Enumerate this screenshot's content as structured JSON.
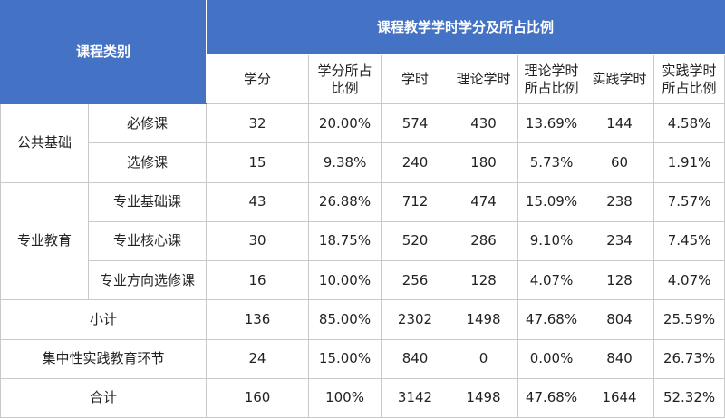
{
  "header": {
    "category": "课程类别",
    "group": "课程教学学时学分及所占比例",
    "columns": [
      [
        "学分"
      ],
      [
        "学分所占",
        "比例"
      ],
      [
        "学时"
      ],
      [
        "理论学时"
      ],
      [
        "理论学时",
        "所占比例"
      ],
      [
        "实践学时"
      ],
      [
        "实践学时",
        "所占比例"
      ]
    ]
  },
  "groups": [
    {
      "name": "公共基础",
      "rows": [
        {
          "name": "必修课",
          "cells": [
            "32",
            "20.00%",
            "574",
            "430",
            "13.69%",
            "144",
            "4.58%"
          ]
        },
        {
          "name": "选修课",
          "cells": [
            "15",
            "9.38%",
            "240",
            "180",
            "5.73%",
            "60",
            "1.91%"
          ]
        }
      ]
    },
    {
      "name": "专业教育",
      "rows": [
        {
          "name": "专业基础课",
          "cells": [
            "43",
            "26.88%",
            "712",
            "474",
            "15.09%",
            "238",
            "7.57%"
          ]
        },
        {
          "name": "专业核心课",
          "cells": [
            "30",
            "18.75%",
            "520",
            "286",
            "9.10%",
            "234",
            "7.45%"
          ]
        },
        {
          "name": "专业方向选修课",
          "cells": [
            "16",
            "10.00%",
            "256",
            "128",
            "4.07%",
            "128",
            "4.07%"
          ]
        }
      ]
    }
  ],
  "summary": [
    {
      "name": "小计",
      "cells": [
        "136",
        "85.00%",
        "2302",
        "1498",
        "47.68%",
        "804",
        "25.59%"
      ]
    },
    {
      "name": "集中性实践教育环节",
      "cells": [
        "24",
        "15.00%",
        "840",
        "0",
        "0.00%",
        "840",
        "26.73%"
      ]
    },
    {
      "name": "合计",
      "cells": [
        "160",
        "100%",
        "3142",
        "1498",
        "47.68%",
        "1644",
        "52.32%"
      ]
    }
  ],
  "colors": {
    "header_bg": "#4472c4",
    "header_text": "#ffffff",
    "border": "#c9c9c9"
  }
}
